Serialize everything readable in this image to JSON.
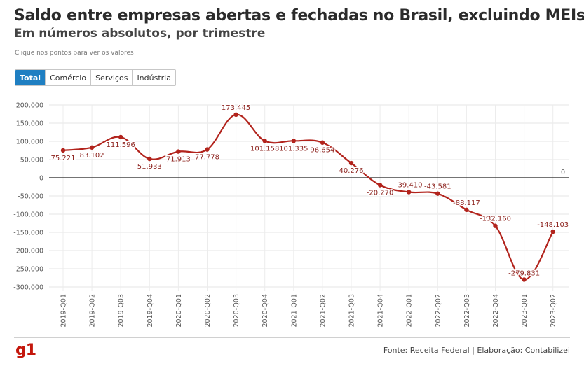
{
  "header": {
    "title": "Saldo entre empresas abertas e fechadas no Brasil, excluindo MEIs",
    "subtitle": "Em números absolutos, por trimestre",
    "hint": "Clique nos pontos para ver os valores"
  },
  "tabs": [
    {
      "label": "Total",
      "active": true
    },
    {
      "label": "Comércio",
      "active": false
    },
    {
      "label": "Serviços",
      "active": false
    },
    {
      "label": "Indústria",
      "active": false
    }
  ],
  "chart_data": {
    "type": "line",
    "categories": [
      "2019-Q01",
      "2019-Q02",
      "2019-Q03",
      "2019-Q04",
      "2020-Q01",
      "2020-Q02",
      "2020-Q03",
      "2020-Q04",
      "2021-Q01",
      "2021-Q02",
      "2021-Q03",
      "2021-Q04",
      "2022-Q01",
      "2022-Q02",
      "2022-Q03",
      "2022-Q04",
      "2023-Q01",
      "2023-Q02"
    ],
    "values": [
      75221,
      83102,
      111596,
      51933,
      71913,
      77778,
      173445,
      101158,
      101335,
      96654,
      40276,
      -20270,
      -39410,
      -43581,
      -88117,
      -132160,
      -279831,
      -148103
    ],
    "data_labels": [
      "75.221",
      "83.102",
      "111.596",
      "51.933",
      "71.913",
      "77.778",
      "173.445",
      "101.158",
      "101.335",
      "96.654",
      "40.276",
      "-20.270",
      "-39.410",
      "-43.581",
      "-88.117",
      "-132.160",
      "-279.831",
      "-148.103"
    ],
    "yticks": [
      200000,
      150000,
      100000,
      50000,
      0,
      -50000,
      -100000,
      -150000,
      -200000,
      -250000,
      -300000
    ],
    "ytick_labels": [
      "200.000",
      "150.000",
      "100.000",
      "50.000",
      "0",
      "-50.000",
      "-100.000",
      "-150.000",
      "-200.000",
      "-250.000",
      "-300.000"
    ],
    "ylim": [
      -300000,
      200000
    ],
    "reference_line": {
      "value": 0,
      "label": "0"
    },
    "line_color": "#b2231c",
    "grid": true,
    "xlabel": "",
    "ylabel": ""
  },
  "footer": {
    "logo": "g1",
    "source": "Fonte: Receita Federal | Elaboração: Contabilizei"
  }
}
